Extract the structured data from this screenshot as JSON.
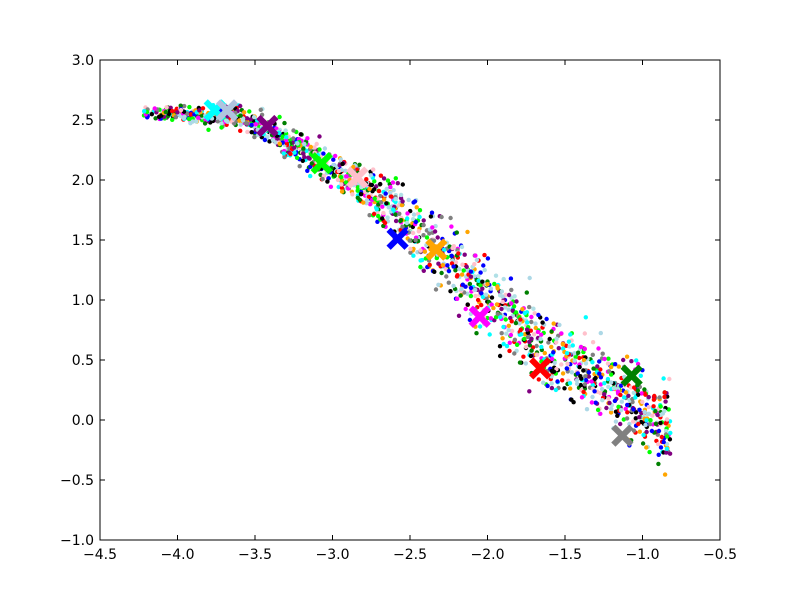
{
  "chart_data": {
    "type": "scatter",
    "title": "",
    "xlabel": "",
    "ylabel": "",
    "xlim": [
      -4.5,
      -0.5
    ],
    "ylim": [
      -1.0,
      3.0
    ],
    "grid": false,
    "legend": "none",
    "x_ticks": [
      "−4.5",
      "−4.0",
      "−3.5",
      "−3.0",
      "−2.5",
      "−2.0",
      "−1.5",
      "−1.0",
      "−0.5"
    ],
    "x_tick_values": [
      -4.5,
      -4.0,
      -3.5,
      -3.0,
      -2.5,
      -2.0,
      -1.5,
      -1.0,
      -0.5
    ],
    "y_ticks": [
      "−1.0",
      "−0.5",
      "0.0",
      "0.5",
      "1.0",
      "1.5",
      "2.0",
      "2.5",
      "3.0"
    ],
    "y_tick_values": [
      -1.0,
      -0.5,
      0.0,
      0.5,
      1.0,
      1.5,
      2.0,
      2.5,
      3.0
    ],
    "point_colors": [
      "#ff0000",
      "#0000ff",
      "#008000",
      "#ff00ff",
      "#000000",
      "#ffa500",
      "#00ff00",
      "#808080",
      "#800080",
      "#add8e6",
      "#ffc0cb",
      "#00ffff",
      "#b0e0e6"
    ],
    "series": [
      {
        "color": "#00ffff",
        "centroid": [
          -3.76,
          2.58
        ]
      },
      {
        "color": "#b0c4de",
        "centroid": [
          -3.68,
          2.58
        ]
      },
      {
        "color": "#800080",
        "centroid": [
          -3.42,
          2.45
        ]
      },
      {
        "color": "#00ff00",
        "centroid": [
          -3.07,
          2.14
        ]
      },
      {
        "color": "#ffc0cb",
        "centroid": [
          -2.84,
          2.02
        ]
      },
      {
        "color": "#0000ff",
        "centroid": [
          -2.58,
          1.51
        ]
      },
      {
        "color": "#ffa500",
        "centroid": [
          -2.33,
          1.42
        ]
      },
      {
        "color": "#ff00ff",
        "centroid": [
          -2.05,
          0.86
        ]
      },
      {
        "color": "#ff0000",
        "centroid": [
          -1.66,
          0.43
        ]
      },
      {
        "color": "#008000",
        "centroid": [
          -1.07,
          0.37
        ]
      },
      {
        "color": "#808080",
        "centroid": [
          -1.13,
          -0.13
        ]
      }
    ]
  }
}
